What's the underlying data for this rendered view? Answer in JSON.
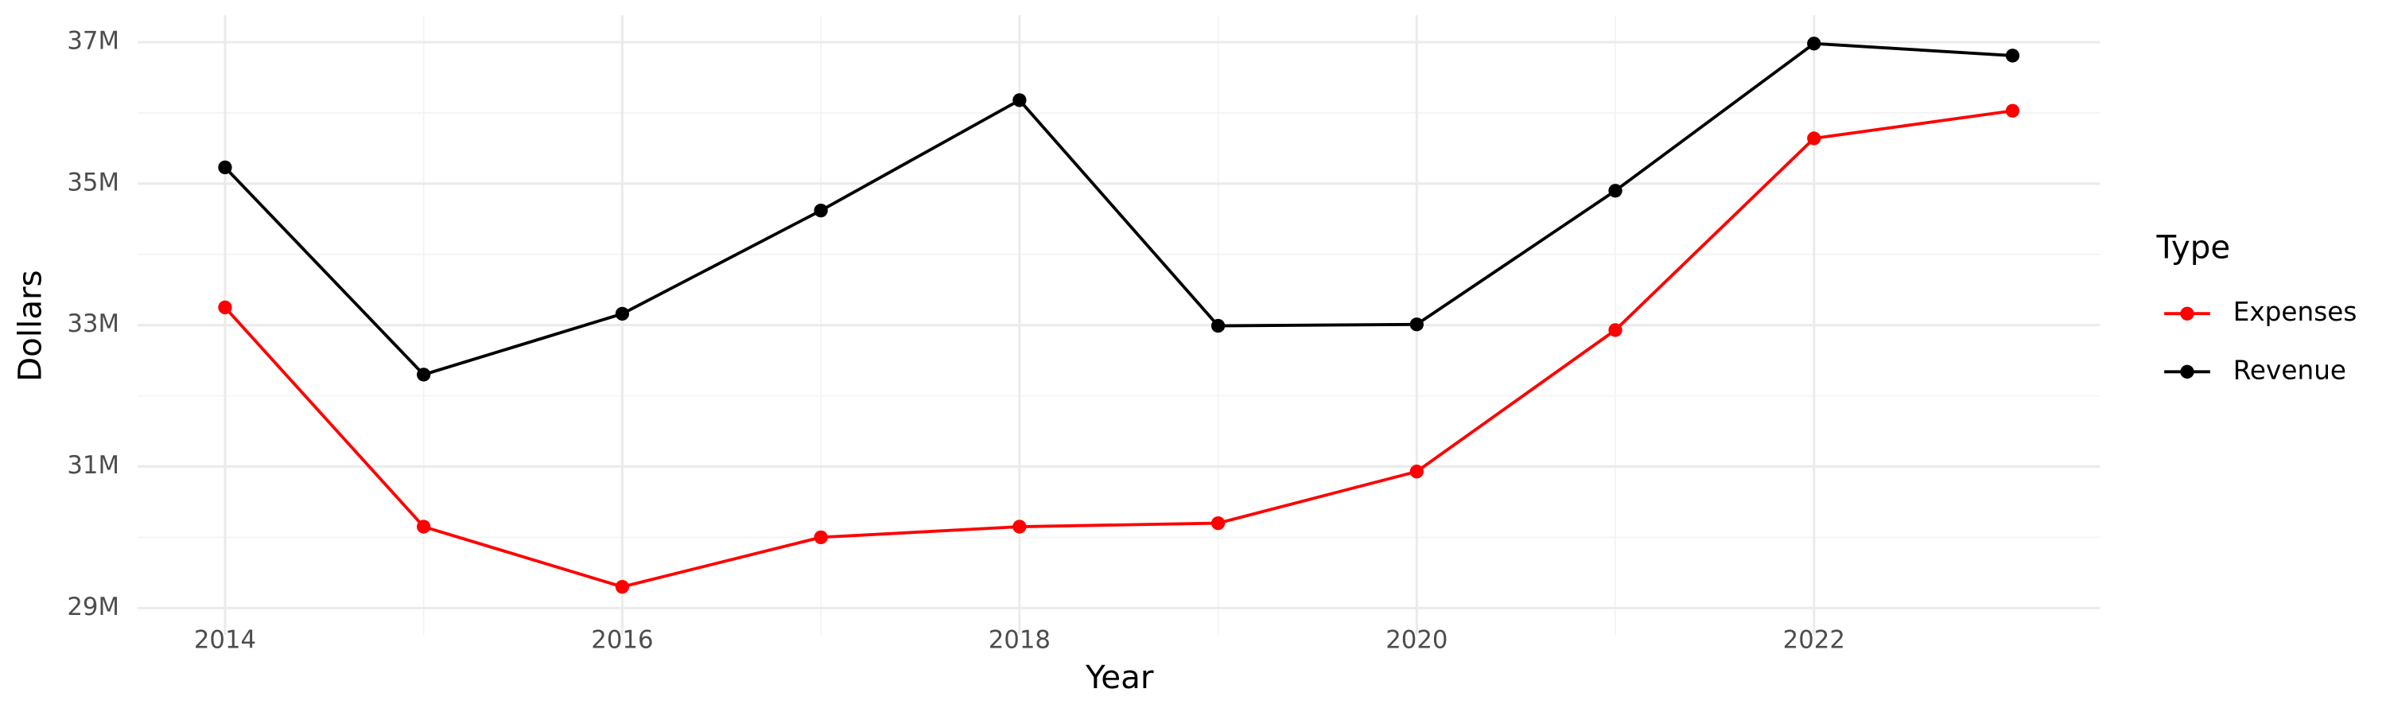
{
  "chart_data": {
    "type": "line",
    "x_label": "Year",
    "y_label": "Dollars",
    "legend_title": "Type",
    "legend": "right",
    "grid": true,
    "x": [
      2014,
      2015,
      2016,
      2017,
      2018,
      2019,
      2020,
      2021,
      2022,
      2023
    ],
    "series": [
      {
        "name": "Expenses",
        "color": "#ff0000",
        "values": [
          33.25,
          30.15,
          29.3,
          30.0,
          30.15,
          30.2,
          30.93,
          32.93,
          35.64,
          36.03
        ]
      },
      {
        "name": "Revenue",
        "color": "#000000",
        "values": [
          35.23,
          32.3,
          33.16,
          34.62,
          36.18,
          32.99,
          33.01,
          34.9,
          36.98,
          36.81
        ]
      }
    ],
    "xlim": [
      2013.56,
      2023.44
    ],
    "xticks": [
      2014,
      2016,
      2018,
      2020,
      2022
    ],
    "ylim": [
      28.62,
      37.38
    ],
    "yticks": [
      {
        "value": 29,
        "label": "29M"
      },
      {
        "value": 31,
        "label": "31M"
      },
      {
        "value": 33,
        "label": "33M"
      },
      {
        "value": 35,
        "label": "35M"
      },
      {
        "value": 37,
        "label": "37M"
      }
    ]
  }
}
